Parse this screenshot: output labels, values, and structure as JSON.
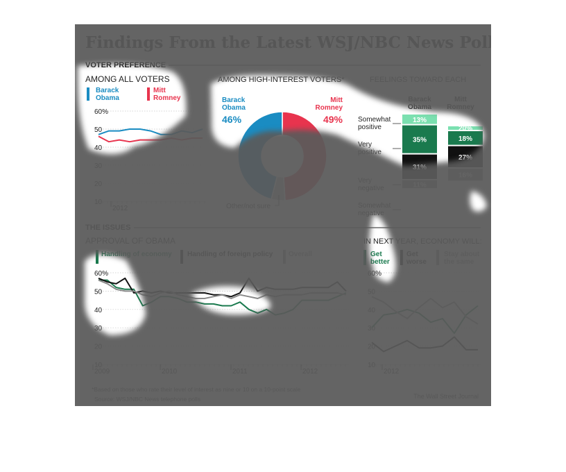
{
  "page": {
    "title": "Findings From the Latest WSJ/NBC News Poll",
    "footnote": "*Based on those who rate their level of interest as nine or 10 on a 10-point scale",
    "source": "Source: WSJ/NBC News telephone polls",
    "credit": "The Wall Street Journal"
  },
  "sections": {
    "voter_preference": "VOTER PREFERENCE",
    "issues": "THE ISSUES"
  },
  "colors": {
    "obama": "#1a8cc2",
    "romney": "#e8344e",
    "economy": "#1a7a4e",
    "foreign": "#111111",
    "overall": "#8a8a8a",
    "better": "#1a7a4e",
    "worse": "#111111",
    "same": "#8a8a8a",
    "mask": "#5a5a5a"
  },
  "all_voters": {
    "heading": "AMONG ALL VOTERS",
    "legend_obama": [
      "Barack",
      "Obama"
    ],
    "legend_romney": [
      "Mitt",
      "Romney"
    ],
    "ticks": [
      "60%",
      "50",
      "40",
      "30",
      "20",
      "10"
    ],
    "xlabel": "2012"
  },
  "high_interest": {
    "heading": "AMONG HIGH-INTEREST VOTERS*",
    "obama_name": [
      "Barack",
      "Obama"
    ],
    "romney_name": [
      "Mitt",
      "Romney"
    ],
    "obama_pct": "46%",
    "romney_pct": "49%",
    "other_label": "Other/not sure"
  },
  "feelings": {
    "heading": "FEELINGS TOWARD EACH",
    "col_obama": [
      "Barack",
      "Obama"
    ],
    "col_romney": [
      "Mitt",
      "Romney"
    ],
    "row_labels": [
      [
        "Somewhat",
        "positive"
      ],
      [
        "Very",
        "positive"
      ],
      [
        "Very",
        "negative"
      ],
      [
        "Somewhat",
        "negative"
      ]
    ],
    "obama_labels": [
      "13%",
      "35%",
      "31%",
      "11%"
    ],
    "romney_labels": [
      "20%",
      "18%",
      "27%",
      "16%"
    ]
  },
  "approval": {
    "heading": "APPROVAL OF OBAMA",
    "legend": [
      "Handling of economy",
      "Handling of foreign policy",
      "Overall"
    ],
    "ticks": [
      "60%",
      "50",
      "40",
      "30",
      "20",
      "10"
    ],
    "xlabels": [
      "2009",
      "2010",
      "2011",
      "2012"
    ]
  },
  "economy": {
    "heading": "IN NEXT YEAR, ECONOMY WILL:",
    "legend": [
      [
        "Get",
        "better"
      ],
      [
        "Get",
        "worse"
      ],
      [
        "Stay about",
        "the same"
      ]
    ],
    "ticks": [
      "60%",
      "50",
      "40",
      "30",
      "20",
      "10"
    ],
    "xlabel": "2012"
  },
  "chart_data": [
    {
      "type": "line",
      "title": "AMONG ALL VOTERS",
      "ylim": [
        10,
        60
      ],
      "x_labels": [
        "2012"
      ],
      "series": [
        {
          "name": "Barack Obama",
          "values": [
            47,
            49,
            49,
            50,
            50,
            49,
            47,
            47,
            49,
            48,
            50
          ]
        },
        {
          "name": "Mitt Romney",
          "values": [
            46,
            43,
            44,
            43,
            44,
            44,
            44,
            45,
            44,
            45,
            45
          ]
        }
      ]
    },
    {
      "type": "pie",
      "title": "AMONG HIGH-INTEREST VOTERS*",
      "slices": [
        {
          "name": "Mitt Romney",
          "value": 49
        },
        {
          "name": "Other/not sure",
          "value": 5
        },
        {
          "name": "Barack Obama",
          "value": 46
        }
      ]
    },
    {
      "type": "bar",
      "title": "FEELINGS TOWARD EACH",
      "categories": [
        "Somewhat positive",
        "Very positive",
        "Very negative",
        "Somewhat negative"
      ],
      "series": [
        {
          "name": "Barack Obama",
          "values": [
            13,
            35,
            31,
            11
          ]
        },
        {
          "name": "Mitt Romney",
          "values": [
            20,
            18,
            27,
            16
          ]
        }
      ]
    },
    {
      "type": "line",
      "title": "APPROVAL OF OBAMA",
      "ylim": [
        10,
        60
      ],
      "x_labels": [
        "2009",
        "2010",
        "2011",
        "2012"
      ],
      "series": [
        {
          "name": "Handling of economy",
          "values": [
            56,
            56,
            52,
            51,
            51,
            42,
            44,
            47,
            47,
            46,
            44,
            44,
            43,
            43,
            42,
            42,
            44,
            40,
            38,
            40,
            37,
            38,
            40,
            45,
            45,
            45,
            45,
            47,
            49
          ]
        },
        {
          "name": "Handling of foreign policy",
          "values": [
            57,
            55,
            54,
            57,
            49,
            50,
            49,
            50,
            49,
            49,
            49,
            49,
            49,
            48,
            48,
            47,
            49,
            57,
            50,
            52,
            51,
            51,
            51,
            52,
            52,
            52,
            52,
            55,
            50
          ]
        },
        {
          "name": "Overall",
          "values": [
            56,
            54,
            51,
            50,
            50,
            48,
            47,
            49,
            50,
            48,
            47,
            46,
            46,
            47,
            48,
            46,
            48,
            47,
            46,
            48,
            47,
            48,
            48,
            48,
            49,
            49,
            49,
            49,
            48
          ]
        }
      ]
    },
    {
      "type": "line",
      "title": "IN NEXT YEAR, ECONOMY WILL:",
      "ylim": [
        10,
        60
      ],
      "x_labels": [
        "2012"
      ],
      "series": [
        {
          "name": "Get better",
          "values": [
            30,
            37,
            38,
            40,
            38,
            33,
            35,
            27,
            37,
            42
          ]
        },
        {
          "name": "Get worse",
          "values": [
            22,
            17,
            20,
            23,
            19,
            19,
            20,
            25,
            18,
            18
          ]
        },
        {
          "name": "Stay about the same",
          "values": [
            47,
            44,
            39,
            35,
            41,
            46,
            41,
            44,
            36,
            32
          ]
        }
      ]
    }
  ]
}
